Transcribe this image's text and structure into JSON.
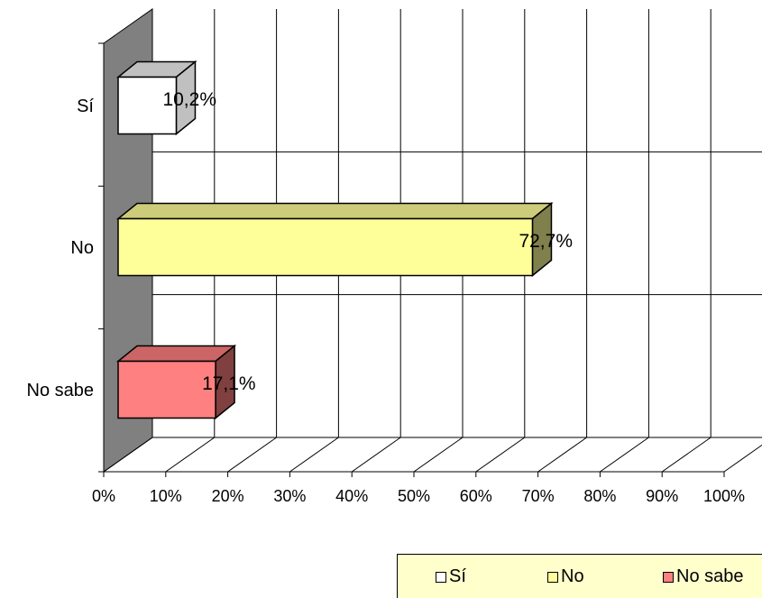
{
  "chart_data": {
    "type": "bar",
    "orientation": "horizontal",
    "three_d": true,
    "categories": [
      "Sí",
      "No",
      "No sabe"
    ],
    "values": [
      10.2,
      72.7,
      17.1
    ],
    "data_labels": [
      "10,2%",
      "72,7%",
      "17,1%"
    ],
    "colors": [
      "#ffffff",
      "#ffff99",
      "#ff8080"
    ],
    "xlim": [
      0,
      100
    ],
    "x_ticks": [
      "0%",
      "10%",
      "20%",
      "30%",
      "40%",
      "50%",
      "60%",
      "70%",
      "80%",
      "90%",
      "100%"
    ],
    "grid": true,
    "legend": {
      "placement": "bottom-right",
      "entries": [
        "Sí",
        "No",
        "No sabe"
      ]
    }
  }
}
